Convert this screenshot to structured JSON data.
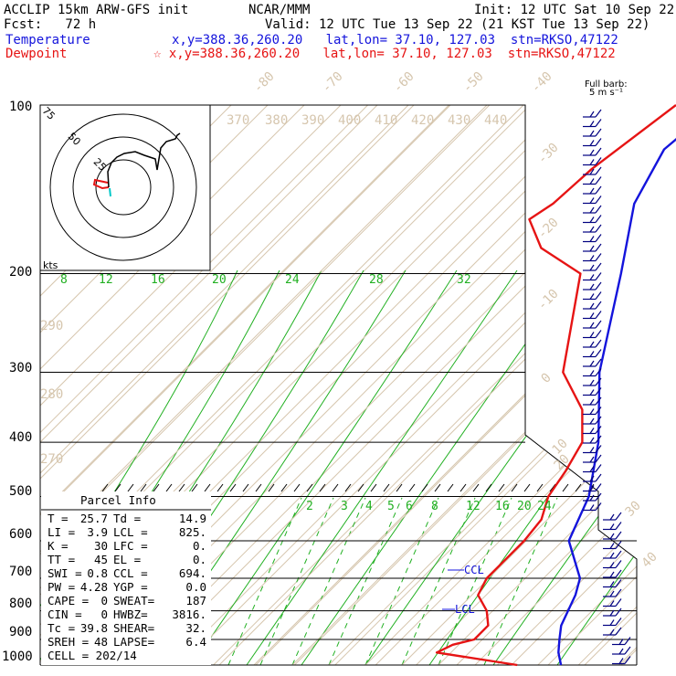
{
  "header": {
    "title_left": "ACCLIP 15km ARW-GFS init",
    "title_center": "NCAR/MMM",
    "init": "Init: 12 UTC Sat 10 Sep 22",
    "fcst": "Fcst:   72 h",
    "valid": "Valid: 12 UTC Tue 13 Sep 22 (21 KST Tue 13 Sep 22)",
    "temp_label": "Temperature",
    "temp_info": "x,y=388.36,260.20   lat,lon= 37.10, 127.03  stn=RKSO,47122",
    "dew_label": "Dewpoint",
    "dew_info": "☆ x,y=388.36,260.20   lat,lon= 37.10, 127.03  stn=RKSO,47122",
    "barb_note_1": "Full barb:",
    "barb_note_2": "5 m s⁻¹"
  },
  "colors": {
    "temperature": "#1414dc",
    "dewpoint": "#e61414",
    "isotherm": "#d6c6ae",
    "mixing_ratio": "#22b022",
    "barb": "#000080",
    "hodo_black": "#000000",
    "hodo_cyan": "#00c8c8"
  },
  "hodograph": {
    "labels": [
      "75",
      "50",
      "25"
    ],
    "unit": "kts"
  },
  "parcel_info": {
    "title": "Parcel Info",
    "rows": [
      [
        "T  =",
        "25.7",
        "Td =",
        "14.9"
      ],
      [
        "LI =",
        "3.9",
        "LCL =",
        "825."
      ],
      [
        "K  =",
        "30",
        "LFC =",
        "0."
      ],
      [
        "TT =",
        "45",
        "EL  =",
        "0."
      ],
      [
        "SWI =",
        "0.8",
        "CCL =",
        "694."
      ],
      [
        "PW =",
        "4.28",
        "YGP =",
        "0.0"
      ],
      [
        "CAPE =",
        "0",
        "SWEAT=",
        "187"
      ],
      [
        "CIN  =",
        "0",
        "HWBZ=",
        "3816."
      ],
      [
        "Tc =",
        "39.8",
        "SHEAR=",
        "32."
      ],
      [
        "SREH =",
        "48",
        "LAPSE=",
        "6.4"
      ]
    ],
    "cell": "CELL = 202/14"
  },
  "chart_data": {
    "type": "line",
    "title": "ACCLIP 15km ARW-GFS init",
    "xlabel": "",
    "ylabel": "",
    "pressure_ticks": [
      "100",
      "200",
      "300",
      "400",
      "500",
      "600",
      "700",
      "800",
      "900",
      "1000"
    ],
    "isotherm_labels": [
      "-80",
      "-70",
      "-60",
      "-50",
      "-40",
      "-30",
      "-20",
      "-10",
      "0",
      "10",
      "20",
      "30",
      "40"
    ],
    "theta_labels": [
      "370",
      "380",
      "390",
      "400",
      "410",
      "420",
      "430",
      "440",
      "290",
      "280",
      "270"
    ],
    "mixing_ratio_labels_upper": [
      "8",
      "12",
      "16",
      "20",
      "24",
      "28",
      "32"
    ],
    "mixing_ratio_labels_lower": [
      "2",
      "3",
      "4",
      "5",
      "6",
      "8",
      "12",
      "16",
      "20",
      "24"
    ],
    "level_labels": [
      "CCL",
      "LCL"
    ],
    "series": [
      {
        "name": "Temperature",
        "pressure": [
          100,
          120,
          150,
          200,
          300,
          400,
          500,
          600,
          700,
          750,
          850,
          900,
          950,
          1000
        ],
        "values": [
          -74,
          -76,
          -70,
          -56,
          -37,
          -20,
          -9,
          -3,
          9,
          12,
          16,
          19,
          22,
          25.7
        ]
      },
      {
        "name": "Dewpoint",
        "pressure": [
          100,
          130,
          150,
          160,
          180,
          200,
          250,
          300,
          350,
          400,
          450,
          500,
          550,
          600,
          650,
          700,
          750,
          800,
          850,
          900,
          920,
          950,
          1000
        ],
        "values": [
          -84,
          -89,
          -90,
          -92,
          -82,
          -66,
          -55,
          -46,
          -32,
          -24,
          -21,
          -19,
          -15,
          -14,
          -14,
          -14,
          -12,
          -6,
          -2,
          -2,
          -6,
          -8,
          14.9
        ]
      }
    ]
  }
}
